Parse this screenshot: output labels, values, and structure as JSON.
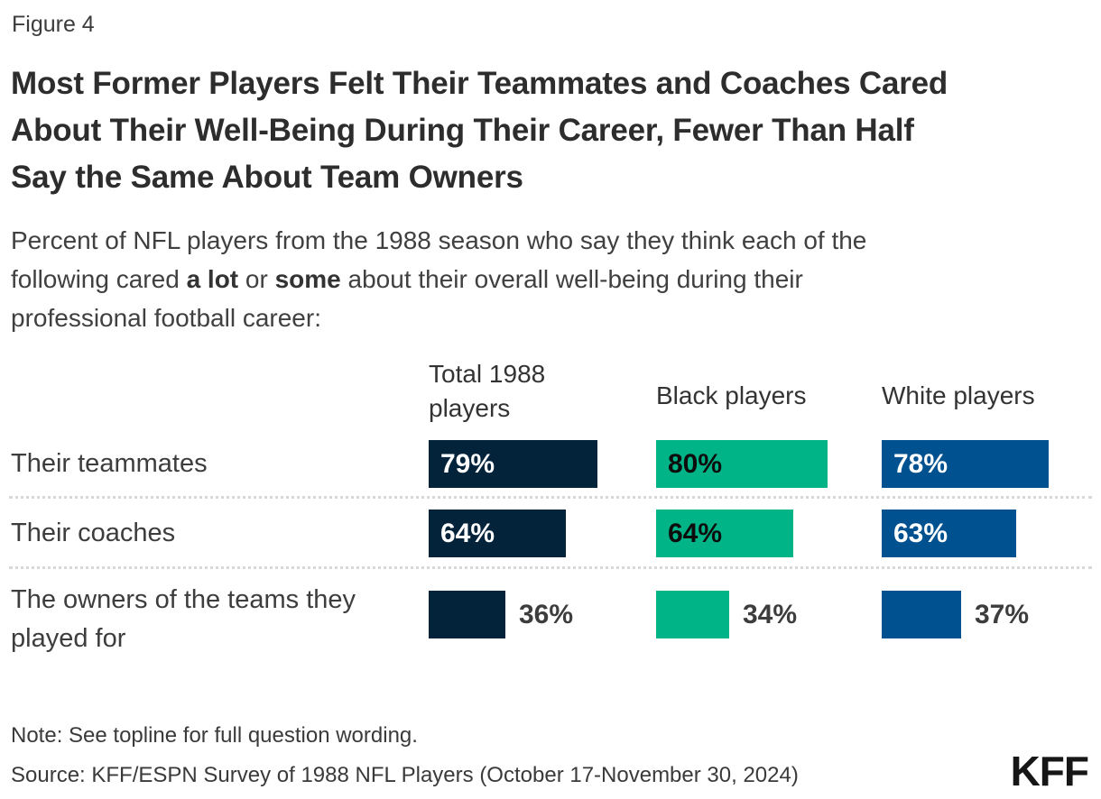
{
  "figure_label": "Figure 4",
  "title": "Most Former Players Felt Their Teammates and Coaches Cared About Their Well-Being During Their Career, Fewer Than Half Say the Same About Team Owners",
  "title_lines": [
    "Most Former Players Felt Their Teammates and Coaches Cared",
    "About Their Well-Being During Their Career, Fewer Than Half",
    "Say the Same About Team Owners"
  ],
  "subtitle": {
    "full": "Percent of NFL players from the 1988 season who say they think each of the following cared a lot or some about their overall well-being during their professional football career:",
    "line1": "Percent of NFL players from the 1988 season who say they think each of the",
    "line2_pre": "following cared ",
    "line2_bold1": "a lot",
    "line2_mid": " or ",
    "line2_bold2": "some",
    "line2_post": " about their overall well-being during their",
    "line3": "professional football career:"
  },
  "chart_data": {
    "type": "bar",
    "orientation": "horizontal",
    "unit": "%",
    "xlim": [
      0,
      100
    ],
    "grid": false,
    "legend_position": "column-headers-top",
    "categories": [
      "Their teammates",
      "Their coaches",
      "The owners of the teams they played for"
    ],
    "series": [
      {
        "name": "Total 1988 players",
        "color": "#03233B",
        "label_color": "#ffffff",
        "values": [
          79,
          64,
          36
        ],
        "labels": [
          "79%",
          "64%",
          "36%"
        ]
      },
      {
        "name": "Black players",
        "color": "#00B487",
        "label_color": "#0d0d0d",
        "values": [
          80,
          64,
          34
        ],
        "labels": [
          "80%",
          "64%",
          "34%"
        ]
      },
      {
        "name": "White players",
        "color": "#005190",
        "label_color": "#ffffff",
        "values": [
          78,
          63,
          37
        ],
        "labels": [
          "78%",
          "63%",
          "37%"
        ]
      }
    ]
  },
  "note": "Note: See topline for full question wording.",
  "source": "Source: KFF/ESPN Survey of 1988 NFL Players (October 17-November 30, 2024)",
  "logo": "KFF"
}
